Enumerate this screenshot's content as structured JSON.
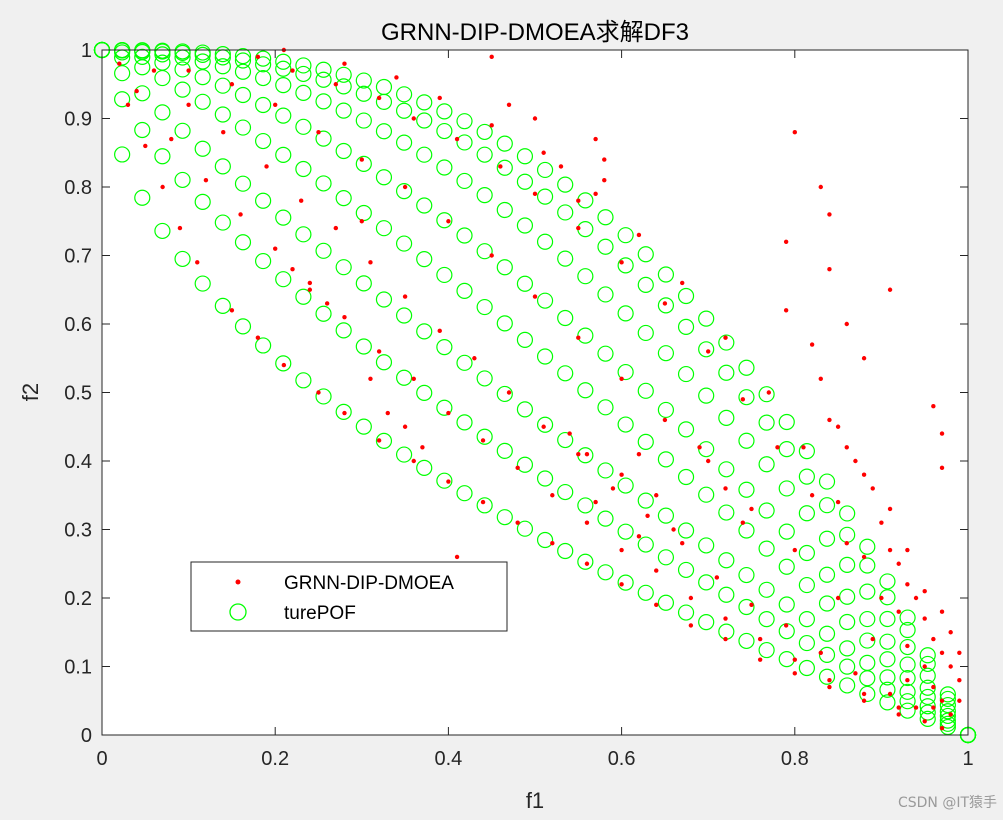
{
  "chart_data": {
    "type": "scatter",
    "title": "GRNN-DIP-DMOEA求解DF3",
    "xlabel": "f1",
    "ylabel": "f2",
    "xlim": [
      0,
      1
    ],
    "ylim": [
      0,
      1
    ],
    "xticks": [
      0,
      0.2,
      0.4,
      0.6,
      0.8,
      1
    ],
    "yticks": [
      0,
      0.1,
      0.2,
      0.3,
      0.4,
      0.5,
      0.6,
      0.7,
      0.8,
      0.9,
      1
    ],
    "xtick_labels": [
      "0",
      "0.2",
      "0.4",
      "0.6",
      "0.8",
      "1"
    ],
    "ytick_labels": [
      "0",
      "0.1",
      "0.2",
      "0.3",
      "0.4",
      "0.5",
      "0.6",
      "0.7",
      "0.8",
      "0.9",
      "1"
    ],
    "grid": false,
    "legend_position": "lower-left",
    "series": [
      {
        "name": "GRNN-DIP-DMOEA",
        "marker": "dot",
        "color": "#ff0000",
        "points": [
          [
            0.02,
            0.98
          ],
          [
            0.03,
            0.92
          ],
          [
            0.05,
            0.86
          ],
          [
            0.07,
            0.8
          ],
          [
            0.09,
            0.74
          ],
          [
            0.11,
            0.69
          ],
          [
            0.15,
            0.62
          ],
          [
            0.18,
            0.58
          ],
          [
            0.21,
            0.54
          ],
          [
            0.25,
            0.5
          ],
          [
            0.28,
            0.47
          ],
          [
            0.32,
            0.43
          ],
          [
            0.36,
            0.4
          ],
          [
            0.4,
            0.37
          ],
          [
            0.44,
            0.34
          ],
          [
            0.48,
            0.31
          ],
          [
            0.52,
            0.28
          ],
          [
            0.56,
            0.25
          ],
          [
            0.6,
            0.22
          ],
          [
            0.64,
            0.19
          ],
          [
            0.68,
            0.16
          ],
          [
            0.72,
            0.14
          ],
          [
            0.76,
            0.11
          ],
          [
            0.8,
            0.09
          ],
          [
            0.84,
            0.07
          ],
          [
            0.88,
            0.05
          ],
          [
            0.92,
            0.03
          ],
          [
            0.95,
            0.02
          ],
          [
            0.04,
            0.94
          ],
          [
            0.08,
            0.87
          ],
          [
            0.12,
            0.81
          ],
          [
            0.16,
            0.76
          ],
          [
            0.2,
            0.71
          ],
          [
            0.24,
            0.66
          ],
          [
            0.28,
            0.61
          ],
          [
            0.32,
            0.56
          ],
          [
            0.36,
            0.52
          ],
          [
            0.4,
            0.47
          ],
          [
            0.44,
            0.43
          ],
          [
            0.48,
            0.39
          ],
          [
            0.52,
            0.35
          ],
          [
            0.56,
            0.31
          ],
          [
            0.6,
            0.27
          ],
          [
            0.64,
            0.24
          ],
          [
            0.68,
            0.2
          ],
          [
            0.72,
            0.17
          ],
          [
            0.76,
            0.14
          ],
          [
            0.8,
            0.11
          ],
          [
            0.84,
            0.08
          ],
          [
            0.88,
            0.06
          ],
          [
            0.92,
            0.04
          ],
          [
            0.06,
            0.97
          ],
          [
            0.1,
            0.92
          ],
          [
            0.14,
            0.88
          ],
          [
            0.19,
            0.83
          ],
          [
            0.23,
            0.78
          ],
          [
            0.27,
            0.74
          ],
          [
            0.31,
            0.69
          ],
          [
            0.35,
            0.64
          ],
          [
            0.39,
            0.59
          ],
          [
            0.43,
            0.55
          ],
          [
            0.47,
            0.5
          ],
          [
            0.51,
            0.45
          ],
          [
            0.55,
            0.41
          ],
          [
            0.59,
            0.36
          ],
          [
            0.63,
            0.32
          ],
          [
            0.67,
            0.28
          ],
          [
            0.71,
            0.23
          ],
          [
            0.75,
            0.19
          ],
          [
            0.79,
            0.16
          ],
          [
            0.83,
            0.12
          ],
          [
            0.87,
            0.09
          ],
          [
            0.91,
            0.06
          ],
          [
            0.94,
            0.04
          ],
          [
            0.1,
            0.97
          ],
          [
            0.15,
            0.95
          ],
          [
            0.2,
            0.92
          ],
          [
            0.25,
            0.88
          ],
          [
            0.3,
            0.84
          ],
          [
            0.35,
            0.8
          ],
          [
            0.4,
            0.75
          ],
          [
            0.45,
            0.7
          ],
          [
            0.5,
            0.64
          ],
          [
            0.55,
            0.58
          ],
          [
            0.6,
            0.52
          ],
          [
            0.65,
            0.46
          ],
          [
            0.7,
            0.4
          ],
          [
            0.75,
            0.33
          ],
          [
            0.8,
            0.27
          ],
          [
            0.85,
            0.2
          ],
          [
            0.89,
            0.14
          ],
          [
            0.93,
            0.08
          ],
          [
            0.96,
            0.04
          ],
          [
            0.18,
            0.99
          ],
          [
            0.22,
            0.97
          ],
          [
            0.27,
            0.95
          ],
          [
            0.32,
            0.93
          ],
          [
            0.36,
            0.9
          ],
          [
            0.41,
            0.87
          ],
          [
            0.46,
            0.83
          ],
          [
            0.5,
            0.79
          ],
          [
            0.55,
            0.74
          ],
          [
            0.6,
            0.69
          ],
          [
            0.65,
            0.63
          ],
          [
            0.7,
            0.56
          ],
          [
            0.74,
            0.49
          ],
          [
            0.78,
            0.42
          ],
          [
            0.82,
            0.35
          ],
          [
            0.86,
            0.28
          ],
          [
            0.9,
            0.2
          ],
          [
            0.93,
            0.13
          ],
          [
            0.96,
            0.07
          ],
          [
            0.21,
            1.0
          ],
          [
            0.28,
            0.98
          ],
          [
            0.34,
            0.96
          ],
          [
            0.39,
            0.93
          ],
          [
            0.45,
            0.89
          ],
          [
            0.51,
            0.85
          ],
          [
            0.57,
            0.79
          ],
          [
            0.62,
            0.73
          ],
          [
            0.67,
            0.66
          ],
          [
            0.72,
            0.58
          ],
          [
            0.77,
            0.5
          ],
          [
            0.81,
            0.42
          ],
          [
            0.85,
            0.34
          ],
          [
            0.88,
            0.26
          ],
          [
            0.92,
            0.18
          ],
          [
            0.95,
            0.1
          ],
          [
            0.97,
            0.05
          ],
          [
            0.57,
            0.87
          ],
          [
            0.58,
            0.84
          ],
          [
            0.58,
            0.81
          ],
          [
            0.8,
            0.88
          ],
          [
            0.83,
            0.8
          ],
          [
            0.84,
            0.76
          ],
          [
            0.84,
            0.68
          ],
          [
            0.86,
            0.6
          ],
          [
            0.88,
            0.55
          ],
          [
            0.91,
            0.65
          ],
          [
            0.79,
            0.62
          ],
          [
            0.82,
            0.57
          ],
          [
            0.83,
            0.52
          ],
          [
            0.79,
            0.72
          ],
          [
            0.96,
            0.48
          ],
          [
            0.97,
            0.44
          ],
          [
            0.97,
            0.39
          ],
          [
            0.85,
            0.45
          ],
          [
            0.87,
            0.4
          ],
          [
            0.89,
            0.36
          ],
          [
            0.9,
            0.31
          ],
          [
            0.91,
            0.27
          ],
          [
            0.92,
            0.25
          ],
          [
            0.93,
            0.22
          ],
          [
            0.94,
            0.2
          ],
          [
            0.95,
            0.17
          ],
          [
            0.96,
            0.14
          ],
          [
            0.97,
            0.12
          ],
          [
            0.98,
            0.1
          ],
          [
            0.99,
            0.08
          ],
          [
            0.99,
            0.05
          ],
          [
            0.98,
            0.03
          ],
          [
            0.97,
            0.01
          ],
          [
            0.98,
            0.15
          ],
          [
            0.99,
            0.12
          ],
          [
            0.97,
            0.18
          ],
          [
            0.95,
            0.21
          ],
          [
            0.93,
            0.27
          ],
          [
            0.91,
            0.33
          ],
          [
            0.88,
            0.38
          ],
          [
            0.86,
            0.42
          ],
          [
            0.84,
            0.46
          ],
          [
            0.3,
            0.75
          ],
          [
            0.31,
            0.52
          ],
          [
            0.33,
            0.47
          ],
          [
            0.35,
            0.45
          ],
          [
            0.37,
            0.42
          ],
          [
            0.24,
            0.65
          ],
          [
            0.26,
            0.63
          ],
          [
            0.22,
            0.68
          ],
          [
            0.45,
            0.99
          ],
          [
            0.47,
            0.92
          ],
          [
            0.5,
            0.9
          ],
          [
            0.53,
            0.83
          ],
          [
            0.55,
            0.78
          ],
          [
            0.54,
            0.44
          ],
          [
            0.56,
            0.41
          ],
          [
            0.6,
            0.38
          ],
          [
            0.62,
            0.41
          ],
          [
            0.64,
            0.35
          ],
          [
            0.66,
            0.3
          ],
          [
            0.72,
            0.36
          ],
          [
            0.74,
            0.31
          ],
          [
            0.69,
            0.42
          ],
          [
            0.41,
            0.26
          ],
          [
            0.43,
            0.25
          ],
          [
            0.57,
            0.34
          ],
          [
            0.62,
            0.29
          ]
        ]
      },
      {
        "name": "turePOF",
        "marker": "circle",
        "color": "#00ff00",
        "fronts": [
          {
            "f2_model": "1 - sqrt(f1)",
            "count": 44
          },
          {
            "f2_model": "1 - f1^0.7",
            "count": 44
          },
          {
            "f2_model": "1 - f1^0.9",
            "count": 44
          },
          {
            "f2_model": "1 - f1^1.2",
            "count": 44
          },
          {
            "f2_model": "1 - f1^1.5",
            "count": 44
          },
          {
            "f2_model": "1 - f1^1.9",
            "count": 44
          },
          {
            "f2_model": "1 - f1^2.3",
            "count": 44
          },
          {
            "f2_model": "1 - f1^2.6",
            "count": 44
          }
        ]
      }
    ]
  },
  "watermark": "CSDN @IT猿手"
}
